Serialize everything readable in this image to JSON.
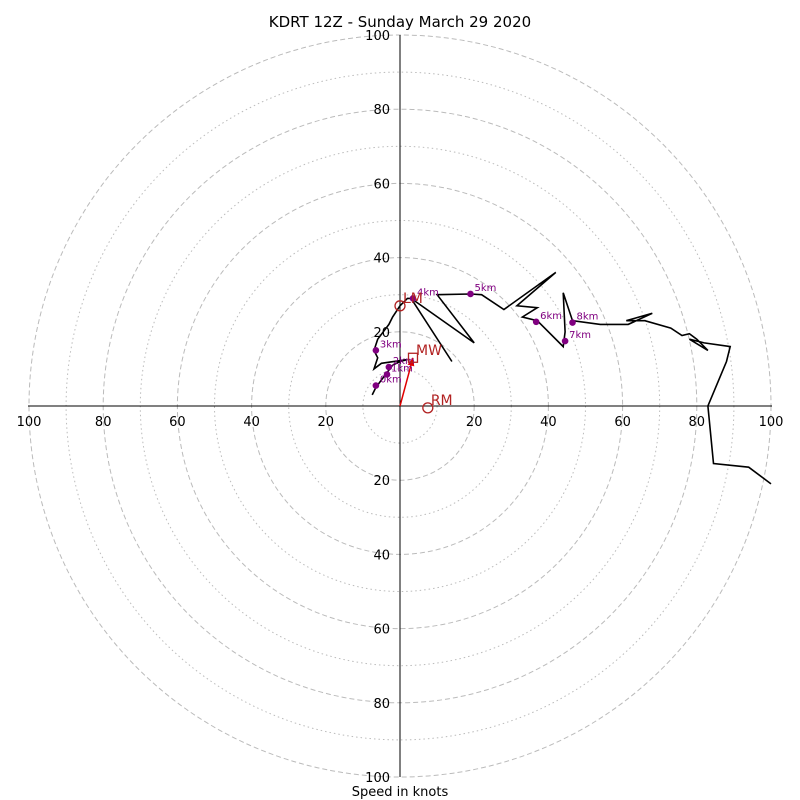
{
  "chart_data": {
    "type": "hodograph",
    "title": "KDRT 12Z - Sunday March 29 2020",
    "xlabel": "Speed in knots",
    "xlim": [
      -100,
      100
    ],
    "ylim": [
      -100,
      100
    ],
    "rings_major": [
      20,
      40,
      60,
      80,
      100
    ],
    "rings_minor": [
      10,
      30,
      50,
      70,
      90
    ],
    "x_ticks": [
      "100",
      "80",
      "60",
      "40",
      "20",
      "20",
      "40",
      "60",
      "80",
      "100"
    ],
    "y_ticks": [
      "100",
      "80",
      "60",
      "40",
      "20",
      "20",
      "40",
      "60",
      "80",
      "100"
    ],
    "profile": [
      [
        -7.5,
        3
      ],
      [
        -6.5,
        5
      ],
      [
        -5,
        7
      ],
      [
        -3.5,
        9
      ],
      [
        -2,
        11
      ],
      [
        0,
        12
      ],
      [
        2,
        12.5
      ],
      [
        -5,
        11.5
      ],
      [
        -7,
        10
      ],
      [
        -6,
        13
      ],
      [
        -7,
        15
      ],
      [
        -6,
        18
      ],
      [
        -4.5,
        20
      ],
      [
        -3,
        22
      ],
      [
        -2,
        24
      ],
      [
        0,
        27
      ],
      [
        2,
        29
      ],
      [
        3,
        29
      ],
      [
        14,
        12
      ],
      [
        3,
        29
      ],
      [
        20,
        17
      ],
      [
        10,
        30
      ],
      [
        19,
        30.2
      ],
      [
        22,
        30
      ],
      [
        28,
        26
      ],
      [
        42,
        36
      ],
      [
        31.5,
        27
      ],
      [
        37,
        26.5
      ],
      [
        33,
        24
      ],
      [
        37,
        23
      ],
      [
        44,
        16
      ],
      [
        44.5,
        20
      ],
      [
        44,
        30.5
      ],
      [
        46.5,
        23
      ],
      [
        54,
        22
      ],
      [
        61.5,
        22
      ],
      [
        68,
        25
      ],
      [
        61,
        23
      ],
      [
        66,
        23
      ],
      [
        73,
        21
      ],
      [
        76,
        19
      ],
      [
        78,
        19.5
      ],
      [
        80,
        18
      ],
      [
        83,
        15
      ],
      [
        78,
        18
      ],
      [
        82,
        17
      ],
      [
        89,
        16
      ],
      [
        88,
        12
      ],
      [
        83,
        0
      ],
      [
        84.5,
        -15.5
      ],
      [
        94,
        -16.5
      ],
      [
        100,
        -21
      ]
    ],
    "height_markers": [
      {
        "label": "0km",
        "u": -6.5,
        "v": 5.5
      },
      {
        "label": "1km",
        "u": -3.5,
        "v": 8.5
      },
      {
        "label": "2km",
        "u": -3.0,
        "v": 10.5
      },
      {
        "label": "3km",
        "u": -6.5,
        "v": 15
      },
      {
        "label": "4km",
        "u": 3.5,
        "v": 29
      },
      {
        "label": "5km",
        "u": 19,
        "v": 30.2
      },
      {
        "label": "6km",
        "u": 36.7,
        "v": 22.7
      },
      {
        "label": "7km",
        "u": 44.5,
        "v": 17.5
      },
      {
        "label": "8km",
        "u": 46.5,
        "v": 22.5
      }
    ],
    "motion_markers": [
      {
        "label": "LM",
        "u": 0,
        "v": 27,
        "shape": "circle"
      },
      {
        "label": "MW",
        "u": 3.5,
        "v": 13,
        "shape": "square"
      },
      {
        "label": "RM",
        "u": 7.5,
        "v": -0.5,
        "shape": "circle"
      }
    ],
    "storm_motion_vector": {
      "from": [
        0,
        0
      ],
      "to": [
        3.5,
        13
      ]
    },
    "colors": {
      "profile": "#000000",
      "height_markers": "#800080",
      "motion": "#b22222",
      "vector": "#e00000",
      "rings": "#bbbbbb",
      "axes": "#000000"
    }
  }
}
